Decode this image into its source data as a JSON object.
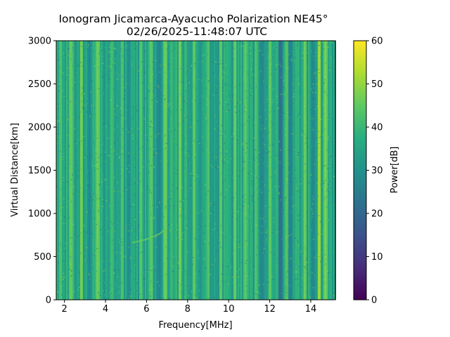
{
  "chart_data": {
    "type": "heatmap",
    "title_line1": "Ionogram Jicamarca-Ayacucho Polarization NE45°",
    "title_line2": "02/26/2025-11:48:07 UTC",
    "xlabel": "Frequency[MHz]",
    "ylabel": "Virtual Distance[km]",
    "xlim": [
      1.6,
      15.2
    ],
    "ylim": [
      0,
      3000
    ],
    "x_ticks": [
      2,
      4,
      6,
      8,
      10,
      12,
      14
    ],
    "y_ticks": [
      0,
      500,
      1000,
      1500,
      2000,
      2500,
      3000
    ],
    "colorbar": {
      "label": "Power[dB]",
      "range": [
        0,
        60
      ],
      "ticks": [
        0,
        10,
        20,
        30,
        40,
        50,
        60
      ],
      "colormap": "viridis"
    },
    "background_power_db": 35,
    "bright_bands": [
      {
        "x": 1.8,
        "power_db": 44
      },
      {
        "x": 2.3,
        "power_db": 46
      },
      {
        "x": 2.8,
        "power_db": 48
      },
      {
        "x": 3.6,
        "power_db": 47
      },
      {
        "x": 4.3,
        "power_db": 42
      },
      {
        "x": 4.8,
        "power_db": 44
      },
      {
        "x": 5.7,
        "power_db": 45
      },
      {
        "x": 6.2,
        "power_db": 45
      },
      {
        "x": 6.9,
        "power_db": 47
      },
      {
        "x": 7.6,
        "power_db": 48
      },
      {
        "x": 8.3,
        "power_db": 46
      },
      {
        "x": 9.0,
        "power_db": 44
      },
      {
        "x": 9.6,
        "power_db": 46
      },
      {
        "x": 10.3,
        "power_db": 47
      },
      {
        "x": 10.8,
        "power_db": 45
      },
      {
        "x": 11.3,
        "power_db": 44
      },
      {
        "x": 12.0,
        "power_db": 46
      },
      {
        "x": 12.8,
        "power_db": 44
      },
      {
        "x": 13.7,
        "power_db": 47
      },
      {
        "x": 14.4,
        "power_db": 52
      },
      {
        "x": 14.7,
        "power_db": 48
      }
    ],
    "dark_bands": [
      {
        "x": 3.2,
        "power_db": 28
      },
      {
        "x": 5.1,
        "power_db": 29
      },
      {
        "x": 6.6,
        "power_db": 27
      },
      {
        "x": 11.6,
        "power_db": 27
      },
      {
        "x": 12.5,
        "power_db": 22
      },
      {
        "x": 13.0,
        "power_db": 26
      },
      {
        "x": 14.1,
        "power_db": 27
      }
    ],
    "echo_trace": [
      {
        "x": 5.3,
        "y": 660
      },
      {
        "x": 6.0,
        "y": 700
      },
      {
        "x": 6.6,
        "y": 760
      },
      {
        "x": 7.0,
        "y": 830
      }
    ]
  }
}
